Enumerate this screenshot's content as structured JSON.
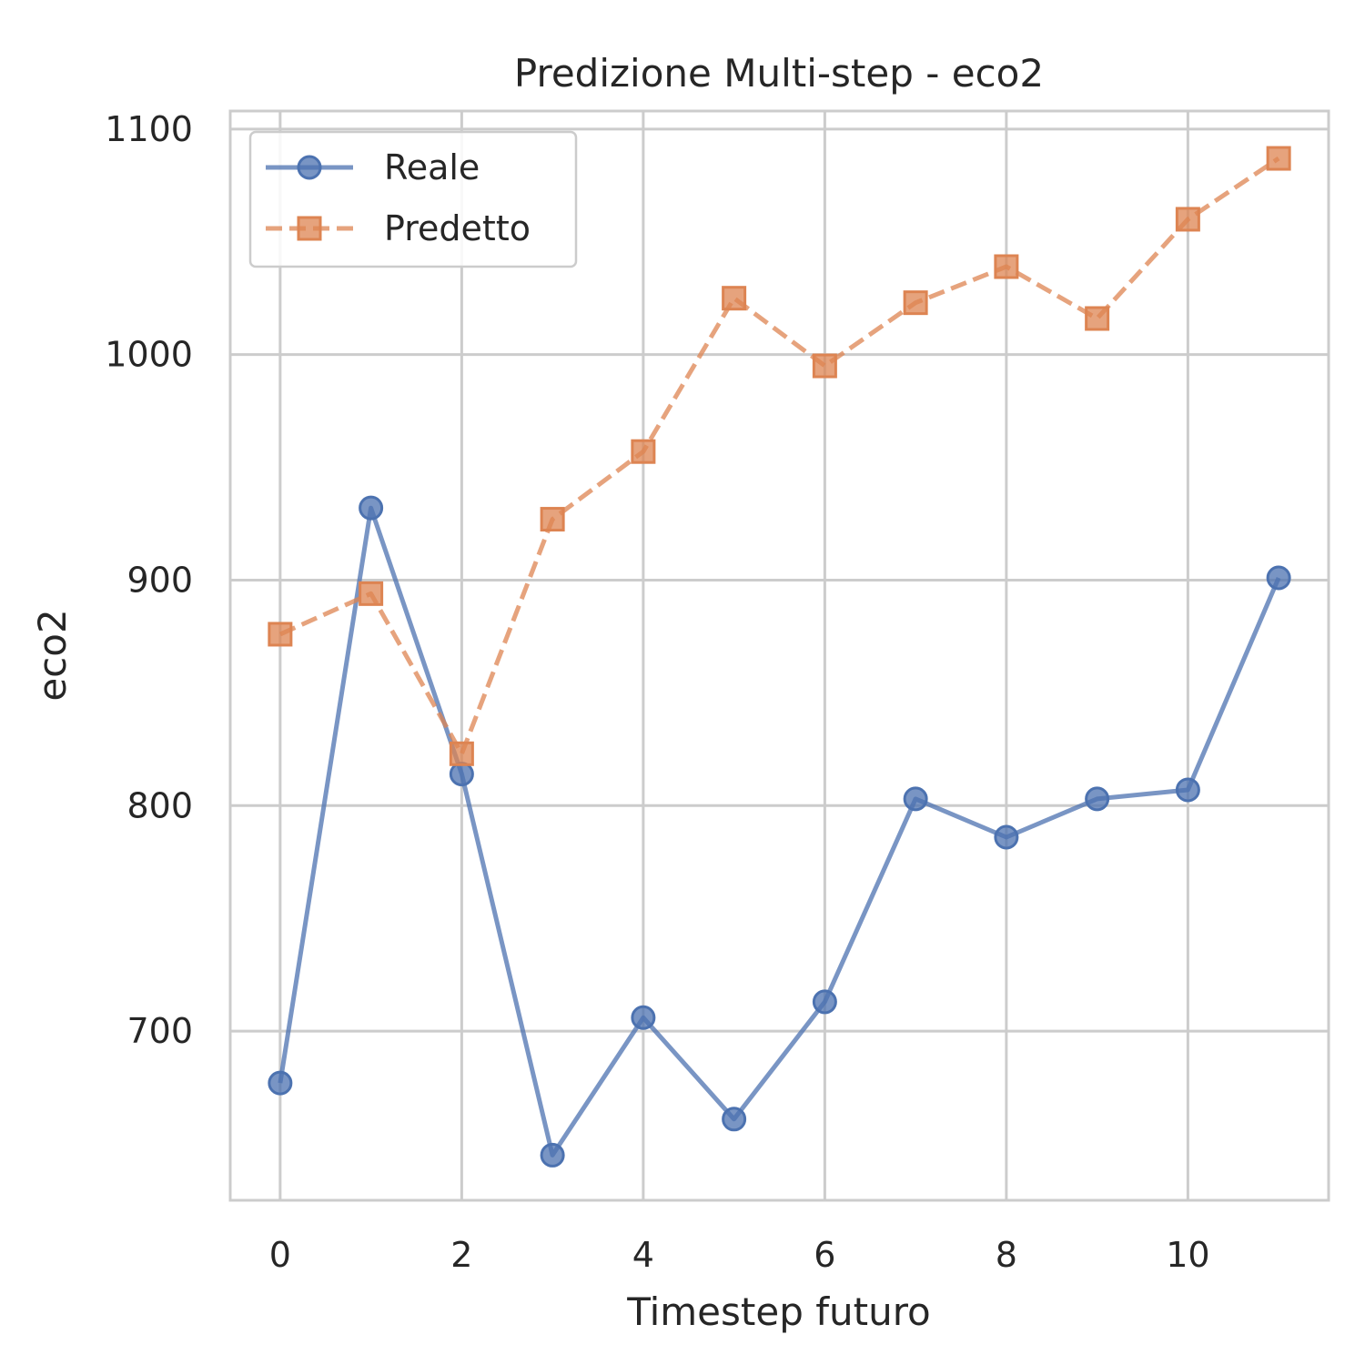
{
  "chart_data": {
    "type": "line",
    "title": "Predizione Multi-step - eco2",
    "xlabel": "Timestep futuro",
    "ylabel": "eco2",
    "x": [
      0,
      1,
      2,
      3,
      4,
      5,
      6,
      7,
      8,
      9,
      10,
      11
    ],
    "xlim": [
      -0.55,
      11.55
    ],
    "ylim": [
      625,
      1108
    ],
    "xticks": [
      0,
      2,
      4,
      6,
      8,
      10
    ],
    "yticks": [
      700,
      800,
      900,
      1000,
      1100
    ],
    "grid": true,
    "legend_position": "upper-left",
    "series": [
      {
        "name": "Reale",
        "color": "#4c72b0",
        "marker": "circle",
        "linestyle": "solid",
        "values": [
          677,
          932,
          814,
          645,
          706,
          661,
          713,
          803,
          786,
          803,
          807,
          901
        ]
      },
      {
        "name": "Predetto",
        "color": "#dd8452",
        "marker": "square",
        "linestyle": "dashed",
        "values": [
          876,
          894,
          823,
          927,
          957,
          1025,
          995,
          1023,
          1039,
          1016,
          1060,
          1087
        ]
      }
    ]
  }
}
